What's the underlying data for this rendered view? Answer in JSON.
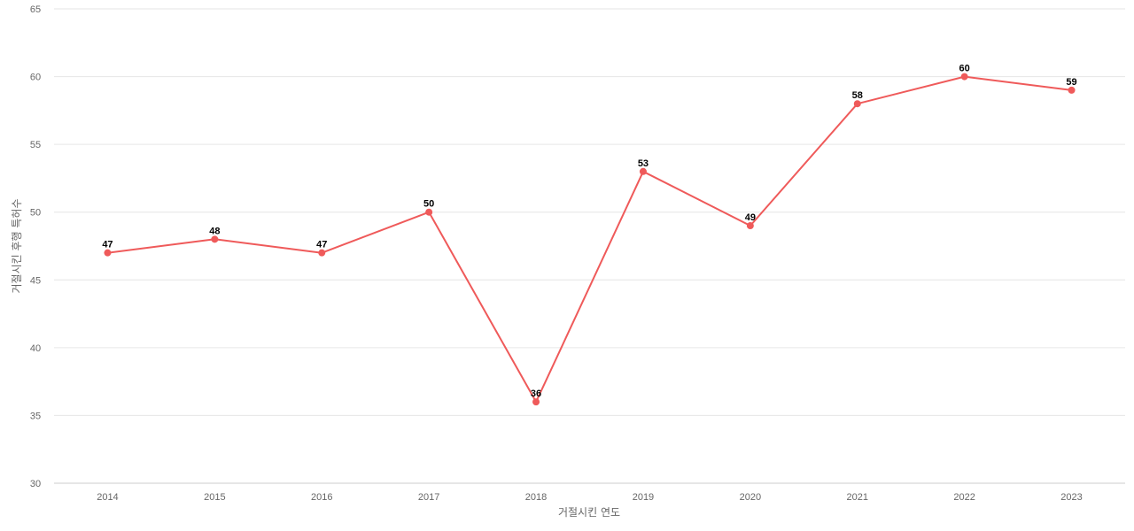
{
  "chart_data": {
    "type": "line",
    "title": "",
    "xlabel": "거절시킨 연도",
    "ylabel": "거절시킨 후행 특허수",
    "ylim": [
      30,
      65
    ],
    "yticks": [
      30,
      35,
      40,
      45,
      50,
      55,
      60,
      65
    ],
    "categories": [
      "2014",
      "2015",
      "2016",
      "2017",
      "2018",
      "2019",
      "2020",
      "2021",
      "2022",
      "2023"
    ],
    "series": [
      {
        "values": [
          47,
          48,
          47,
          50,
          36,
          53,
          49,
          58,
          60,
          59
        ],
        "color": "#ef5a5a"
      }
    ],
    "data_labels": true,
    "grid": true,
    "legend": "none"
  }
}
